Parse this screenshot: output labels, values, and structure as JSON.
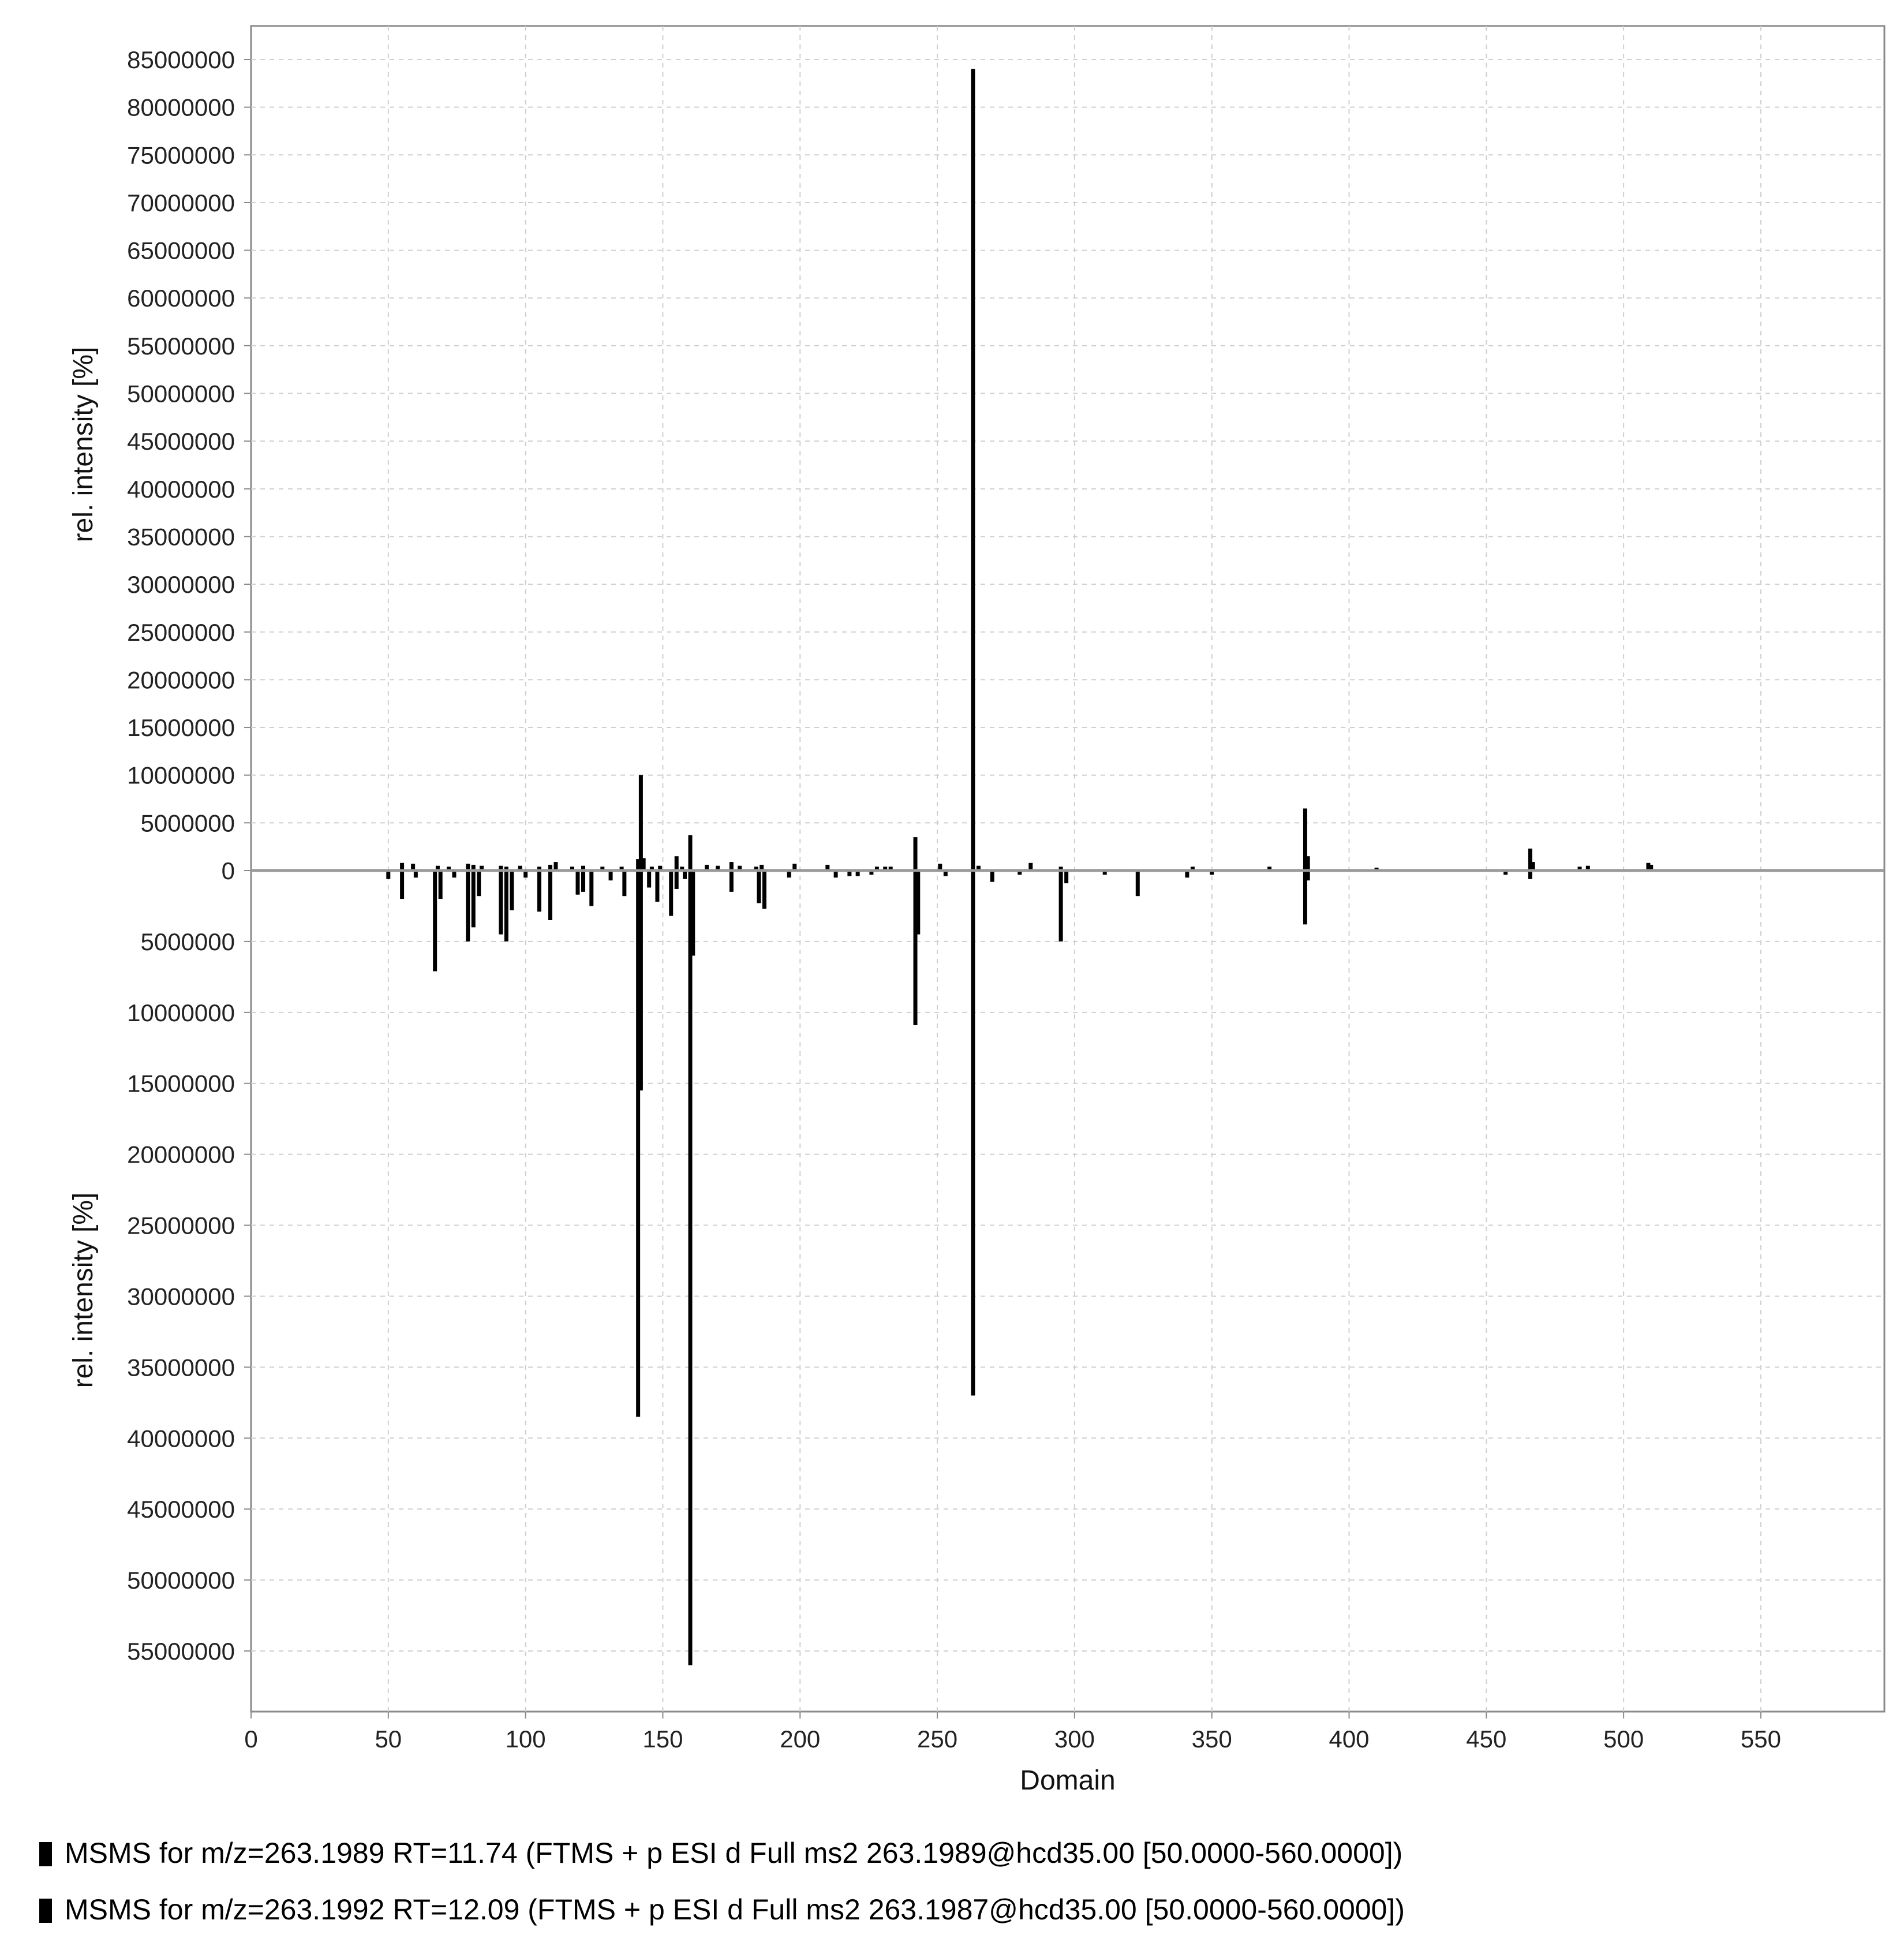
{
  "chart_data": {
    "type": "bar",
    "subtype": "mirror-spectrum",
    "xlabel": "Domain",
    "ylabel_top": "rel. intensity [%]",
    "ylabel_bottom": "rel. intensity [%]",
    "xlim": [
      0,
      595
    ],
    "ylim_top": [
      0,
      88000000
    ],
    "ylim_bottom": [
      0,
      60000000
    ],
    "x_ticks": [
      "0",
      "50",
      "100",
      "150",
      "200",
      "250",
      "300",
      "350",
      "400",
      "450",
      "500",
      "550"
    ],
    "y_ticks_top": [
      "0",
      "5000000",
      "10000000",
      "15000000",
      "20000000",
      "25000000",
      "30000000",
      "35000000",
      "40000000",
      "45000000",
      "50000000",
      "55000000",
      "60000000",
      "65000000",
      "70000000",
      "75000000",
      "80000000",
      "85000000"
    ],
    "y_ticks_bottom": [
      "5000000",
      "10000000",
      "15000000",
      "20000000",
      "25000000",
      "30000000",
      "35000000",
      "40000000",
      "45000000",
      "50000000",
      "55000000"
    ],
    "grid": true,
    "bar_color": "#000000",
    "baseline_color": "#999999",
    "grid_color": "#cfcfcf",
    "series": [
      {
        "name": "MSMS for m/z=263.1989 RT=11.74 (FTMS + p ESI d Full ms2 263.1989@hcd35.00 [50.0000-560.0000])",
        "direction": "up",
        "peaks": [
          [
            55,
            800000
          ],
          [
            59,
            700000
          ],
          [
            68,
            500000
          ],
          [
            72,
            400000
          ],
          [
            79,
            700000
          ],
          [
            81,
            600000
          ],
          [
            84,
            500000
          ],
          [
            91,
            500000
          ],
          [
            93,
            400000
          ],
          [
            98,
            500000
          ],
          [
            105,
            400000
          ],
          [
            109,
            600000
          ],
          [
            111,
            900000
          ],
          [
            117,
            400000
          ],
          [
            121,
            500000
          ],
          [
            128,
            400000
          ],
          [
            135,
            400000
          ],
          [
            141,
            1200000
          ],
          [
            142,
            10000000
          ],
          [
            143,
            1300000
          ],
          [
            146,
            400000
          ],
          [
            149,
            500000
          ],
          [
            155,
            1500000
          ],
          [
            157,
            400000
          ],
          [
            160,
            3700000
          ],
          [
            166,
            600000
          ],
          [
            170,
            500000
          ],
          [
            175,
            900000
          ],
          [
            178,
            500000
          ],
          [
            184,
            400000
          ],
          [
            186,
            600000
          ],
          [
            198,
            700000
          ],
          [
            210,
            600000
          ],
          [
            228,
            400000
          ],
          [
            231,
            400000
          ],
          [
            233,
            400000
          ],
          [
            242,
            3500000
          ],
          [
            251,
            700000
          ],
          [
            263,
            84000000
          ],
          [
            265,
            500000
          ],
          [
            284,
            800000
          ],
          [
            295,
            400000
          ],
          [
            343,
            400000
          ],
          [
            371,
            400000
          ],
          [
            384,
            6500000
          ],
          [
            385,
            1500000
          ],
          [
            410,
            300000
          ],
          [
            466,
            2300000
          ],
          [
            467,
            900000
          ],
          [
            484,
            400000
          ],
          [
            487,
            500000
          ],
          [
            509,
            800000
          ],
          [
            510,
            600000
          ]
        ]
      },
      {
        "name": "MSMS for m/z=263.1992 RT=12.09 (FTMS + p ESI d Full ms2 263.1987@hcd35.00 [50.0000-560.0000])",
        "direction": "down",
        "peaks": [
          [
            50,
            600000
          ],
          [
            55,
            2000000
          ],
          [
            60,
            500000
          ],
          [
            67,
            7100000
          ],
          [
            69,
            2000000
          ],
          [
            74,
            500000
          ],
          [
            79,
            5000000
          ],
          [
            81,
            4000000
          ],
          [
            83,
            1800000
          ],
          [
            91,
            4500000
          ],
          [
            93,
            5000000
          ],
          [
            95,
            2800000
          ],
          [
            100,
            500000
          ],
          [
            105,
            2900000
          ],
          [
            109,
            3500000
          ],
          [
            119,
            1700000
          ],
          [
            121,
            1500000
          ],
          [
            124,
            2500000
          ],
          [
            131,
            700000
          ],
          [
            136,
            1800000
          ],
          [
            141,
            38500000
          ],
          [
            142,
            15500000
          ],
          [
            145,
            1200000
          ],
          [
            148,
            2200000
          ],
          [
            153,
            3200000
          ],
          [
            155,
            1300000
          ],
          [
            158,
            600000
          ],
          [
            160,
            56000000
          ],
          [
            161,
            6000000
          ],
          [
            175,
            1500000
          ],
          [
            185,
            2300000
          ],
          [
            187,
            2700000
          ],
          [
            196,
            500000
          ],
          [
            213,
            500000
          ],
          [
            218,
            400000
          ],
          [
            221,
            400000
          ],
          [
            226,
            300000
          ],
          [
            242,
            10900000
          ],
          [
            243,
            4500000
          ],
          [
            253,
            400000
          ],
          [
            263,
            37000000
          ],
          [
            270,
            800000
          ],
          [
            280,
            300000
          ],
          [
            295,
            5000000
          ],
          [
            297,
            900000
          ],
          [
            311,
            300000
          ],
          [
            323,
            1800000
          ],
          [
            341,
            500000
          ],
          [
            350,
            300000
          ],
          [
            384,
            3800000
          ],
          [
            385,
            700000
          ],
          [
            457,
            300000
          ],
          [
            466,
            600000
          ]
        ]
      }
    ]
  }
}
